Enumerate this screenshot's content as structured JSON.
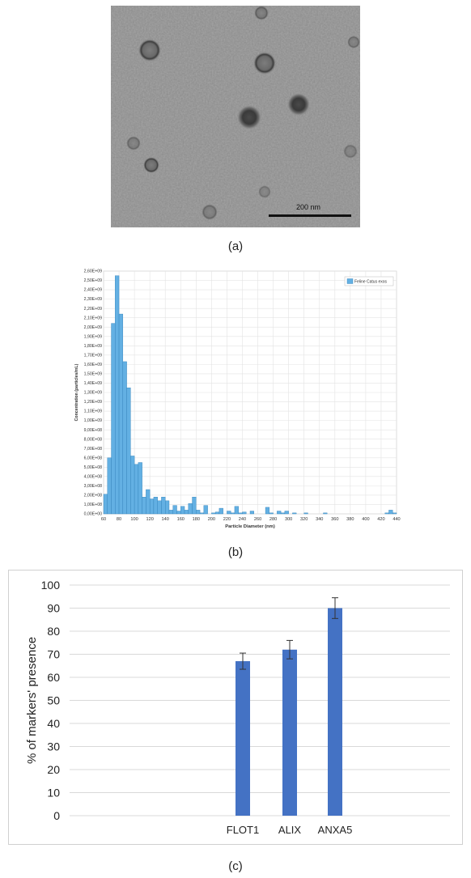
{
  "panels": {
    "a": {
      "label": "(a)",
      "scale_bar_label": "200 nm"
    },
    "b": {
      "label": "(b)"
    },
    "c": {
      "label": "(c)"
    }
  },
  "colors": {
    "histogram_bar": "#63b0e3",
    "histogram_edge": "#2f7fb8",
    "marker_bar": "#4472c4",
    "gridline": "#d9d9d9"
  },
  "chart_data": [
    {
      "type": "bar",
      "xlabel": "Particle Diameter (nm)",
      "ylabel": "Concentration (particles/mL)",
      "legend": {
        "entries": [
          "Feline Catus exos"
        ],
        "placement": "top-right"
      },
      "xlim": [
        60,
        440
      ],
      "ylim": [
        0,
        2600000000.0
      ],
      "bin_width_nm": 5,
      "x_ticks": [
        60,
        80,
        100,
        120,
        140,
        160,
        180,
        200,
        220,
        240,
        260,
        280,
        300,
        320,
        340,
        360,
        380,
        400,
        420,
        440
      ],
      "y_tick_labels": [
        "0,00E+00",
        "1,00E+08",
        "2,00E+08",
        "3,00E+08",
        "4,00E+08",
        "5,00E+08",
        "6,00E+08",
        "7,00E+08",
        "8,00E+08",
        "9,00E+08",
        "1,00E+09",
        "1,10E+09",
        "1,20E+09",
        "1,30E+09",
        "1,40E+09",
        "1,50E+09",
        "1,60E+09",
        "1,70E+09",
        "1,80E+09",
        "1,90E+09",
        "2,00E+09",
        "2,10E+09",
        "2,20E+09",
        "2,30E+09",
        "2,40E+09",
        "2,50E+09",
        "2,60E+09"
      ],
      "grid": true,
      "series": [
        {
          "name": "Feline Catus exos",
          "x": [
            60,
            65,
            70,
            75,
            80,
            85,
            90,
            95,
            100,
            105,
            110,
            115,
            120,
            125,
            130,
            135,
            140,
            145,
            150,
            155,
            160,
            165,
            170,
            175,
            180,
            185,
            190,
            195,
            200,
            205,
            210,
            215,
            220,
            225,
            230,
            235,
            240,
            245,
            250,
            255,
            260,
            265,
            270,
            275,
            280,
            285,
            290,
            295,
            300,
            305,
            310,
            315,
            320,
            325,
            330,
            335,
            340,
            345,
            350,
            355,
            360,
            365,
            370,
            375,
            380,
            385,
            390,
            395,
            400,
            405,
            410,
            415,
            420,
            425,
            430,
            435
          ],
          "values": [
            210000000.0,
            600000000.0,
            2040000000.0,
            2550000000.0,
            2140000000.0,
            1630000000.0,
            1350000000.0,
            620000000.0,
            530000000.0,
            550000000.0,
            180000000.0,
            260000000.0,
            160000000.0,
            180000000.0,
            140000000.0,
            180000000.0,
            140000000.0,
            40000000.0,
            90000000.0,
            30000000.0,
            80000000.0,
            40000000.0,
            110000000.0,
            180000000.0,
            40000000.0,
            10000000.0,
            90000000.0,
            0,
            10000000.0,
            20000000.0,
            60000000.0,
            0,
            30000000.0,
            10000000.0,
            80000000.0,
            10000000.0,
            20000000.0,
            0,
            30000000.0,
            0,
            0,
            0,
            70000000.0,
            10000000.0,
            0,
            30000000.0,
            10000000.0,
            30000000.0,
            0,
            10000000.0,
            0,
            0,
            10000000.0,
            0,
            0,
            0,
            0,
            10000000.0,
            0,
            0,
            0,
            0,
            0,
            0,
            0,
            0,
            0,
            0,
            0,
            0,
            0,
            0,
            0,
            10000000.0,
            40000000.0,
            10000000.0
          ]
        }
      ]
    },
    {
      "type": "bar",
      "ylabel": "% of markers' presence",
      "xlabel": "",
      "categories": [
        "FLOT1",
        "ALIX",
        "ANXA5"
      ],
      "values": [
        67,
        72,
        90
      ],
      "error": [
        3.5,
        4,
        4.5
      ],
      "ylim": [
        0,
        100
      ],
      "y_ticks": [
        0,
        10,
        20,
        30,
        40,
        50,
        60,
        70,
        80,
        90,
        100
      ],
      "grid": true
    }
  ]
}
